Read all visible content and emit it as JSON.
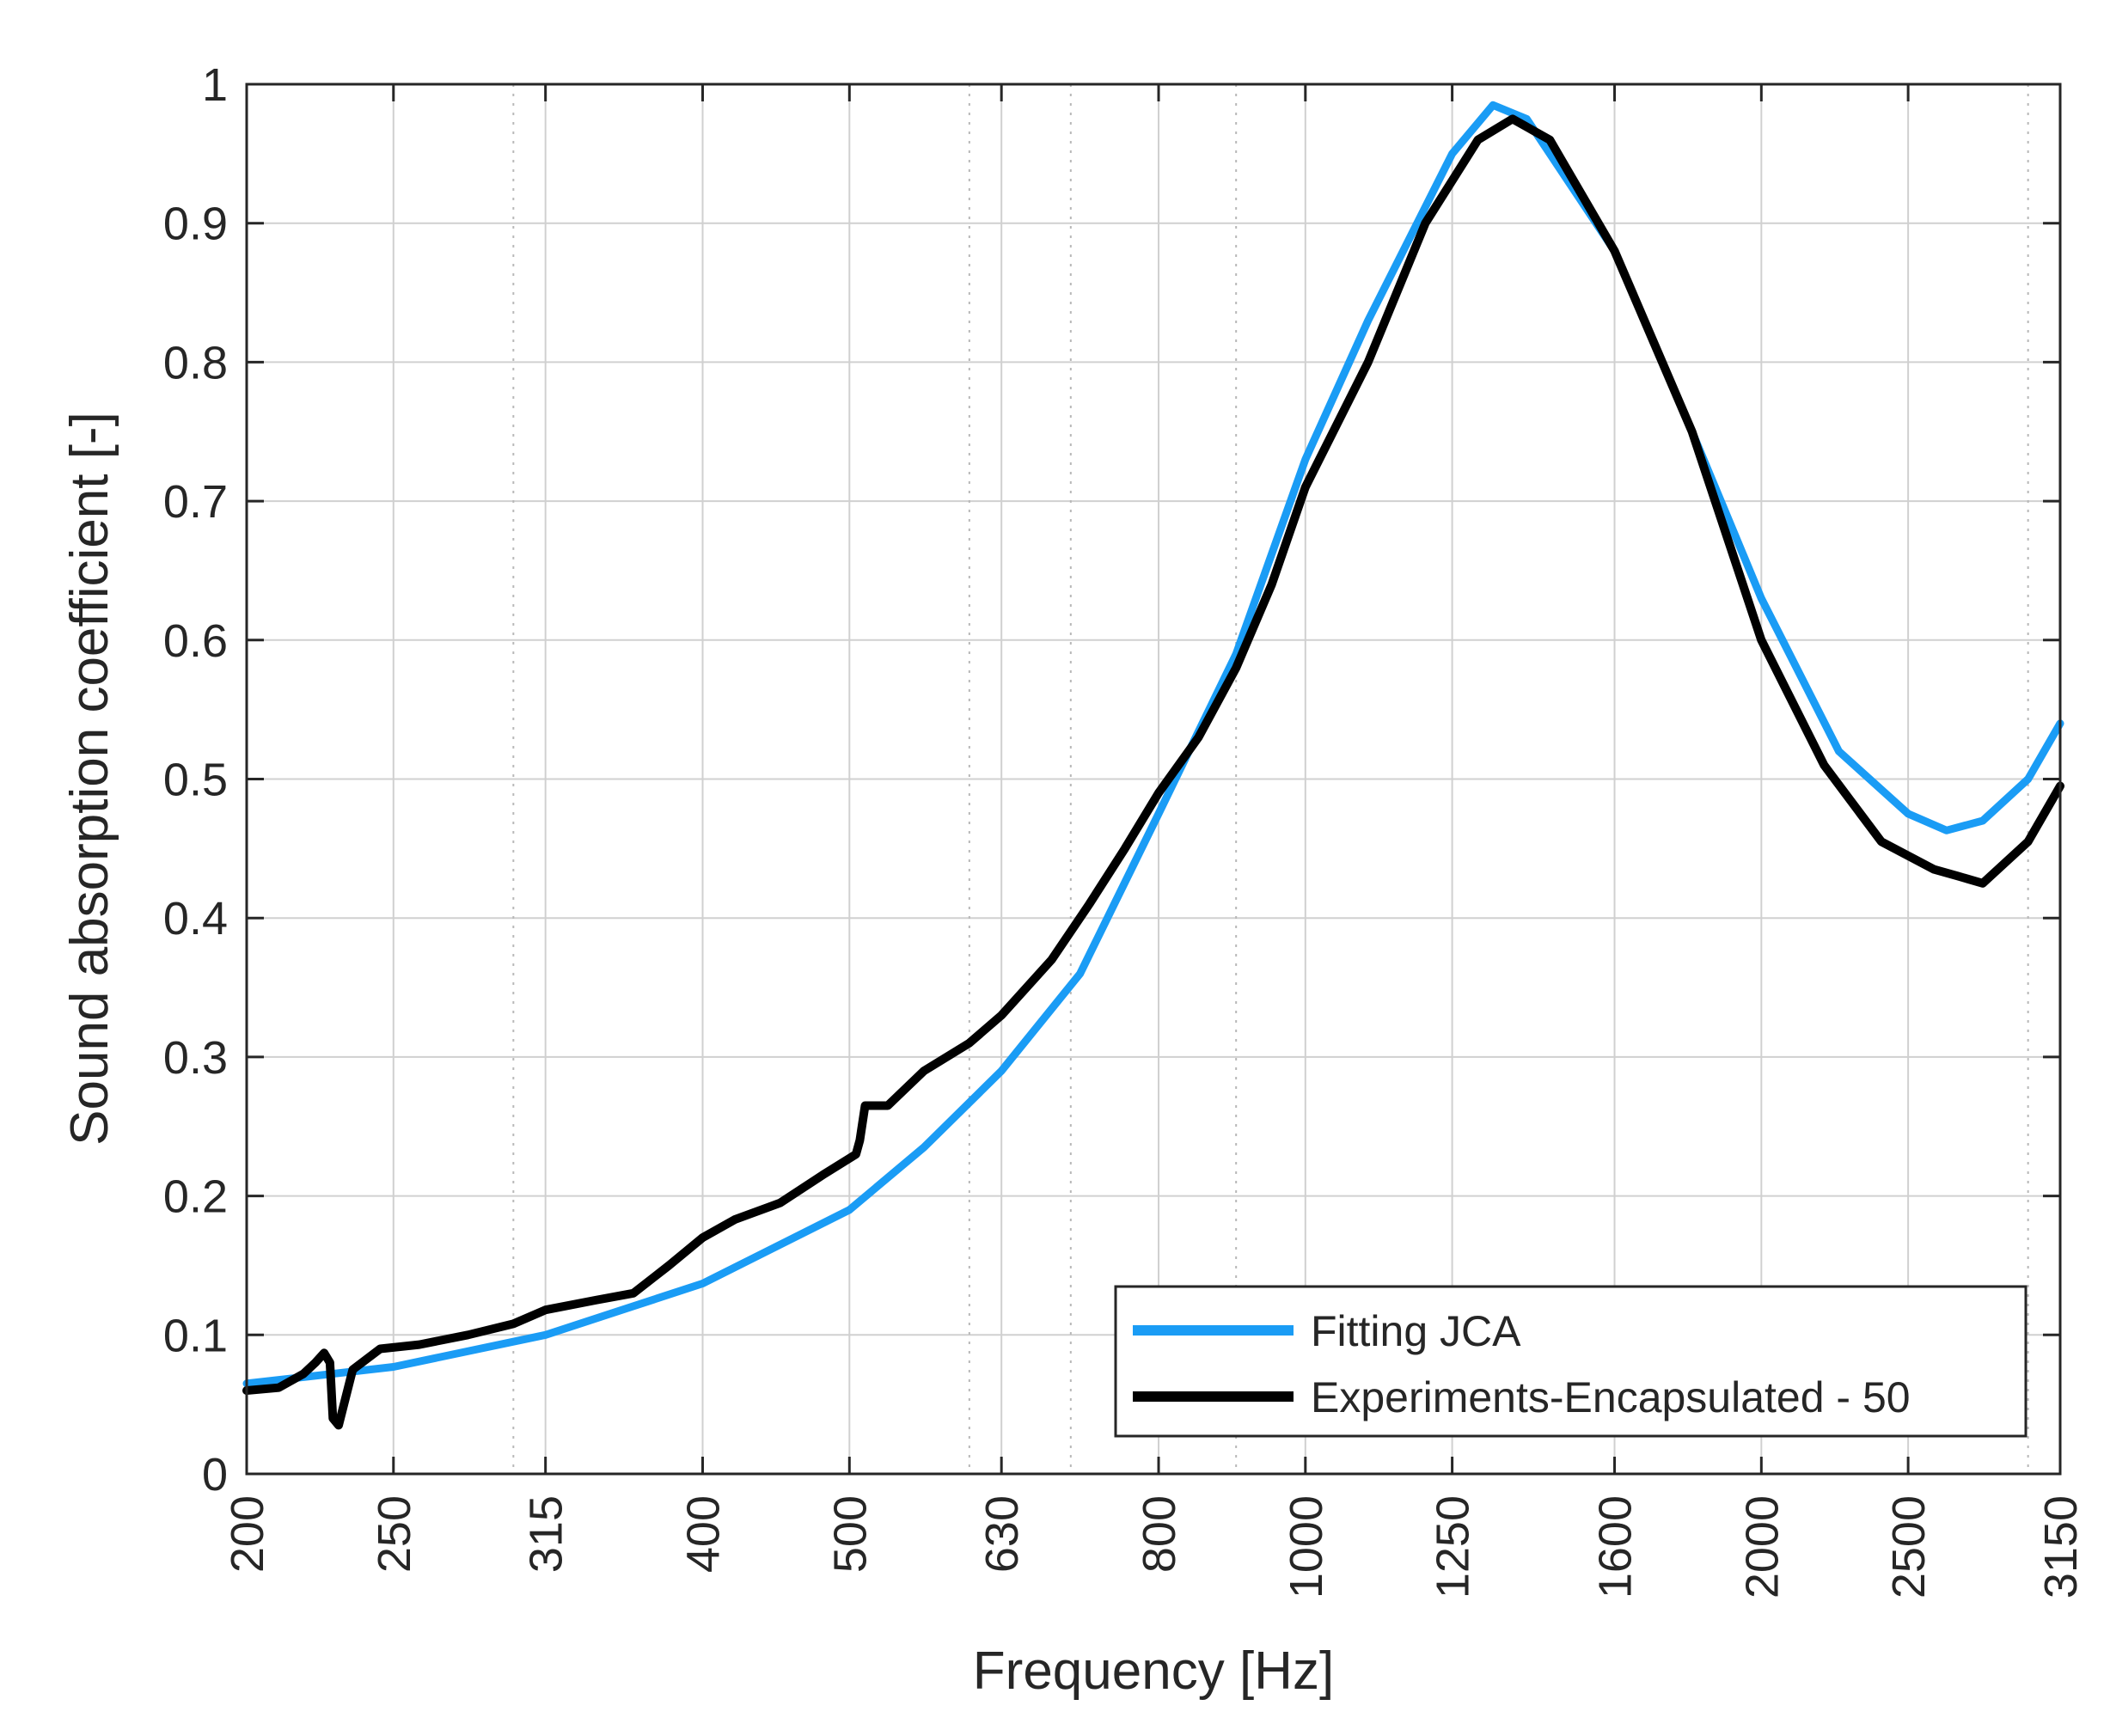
{
  "chart_data": {
    "type": "line",
    "title": "",
    "xlabel": "Frequency [Hz]",
    "ylabel": "Sound absorption coefficient [-]",
    "xscale": "log",
    "xlim": [
      200,
      3150
    ],
    "ylim": [
      0,
      1
    ],
    "grid": true,
    "x_ticks": [
      200,
      250,
      315,
      400,
      500,
      630,
      800,
      1000,
      1250,
      1600,
      2000,
      2500,
      3150
    ],
    "x_tick_labels": [
      "200",
      "250",
      "315",
      "400",
      "500",
      "630",
      "800",
      "1000",
      "1250",
      "1600",
      "2000",
      "2500",
      "3150"
    ],
    "x_minor_grid": [
      300,
      600,
      700,
      900,
      3000
    ],
    "y_ticks": [
      0,
      0.1,
      0.2,
      0.3,
      0.4,
      0.5,
      0.6,
      0.7,
      0.8,
      0.9,
      1
    ],
    "y_tick_labels": [
      "0",
      "0.1",
      "0.2",
      "0.3",
      "0.4",
      "0.5",
      "0.6",
      "0.7",
      "0.8",
      "0.9",
      "1"
    ],
    "legend_position": "bottom-right",
    "series": [
      {
        "name": "Fitting JCA",
        "color": "#1a9cf5",
        "x": [
          200,
          250,
          315,
          400,
          500,
          560,
          630,
          710,
          800,
          900,
          1000,
          1100,
          1250,
          1330,
          1400,
          1600,
          1800,
          2000,
          2250,
          2500,
          2650,
          2800,
          3000,
          3150
        ],
        "y": [
          0.065,
          0.077,
          0.1,
          0.137,
          0.19,
          0.235,
          0.29,
          0.36,
          0.475,
          0.59,
          0.73,
          0.83,
          0.95,
          0.985,
          0.975,
          0.88,
          0.75,
          0.63,
          0.52,
          0.475,
          0.463,
          0.47,
          0.5,
          0.54
        ]
      },
      {
        "name": "Experiments-Encapsulated - 50",
        "color": "#000000",
        "x": [
          200,
          210,
          218,
          222,
          225,
          227,
          228,
          230,
          235,
          245,
          260,
          280,
          300,
          315,
          340,
          360,
          380,
          400,
          420,
          450,
          480,
          505,
          508,
          512,
          530,
          560,
          600,
          630,
          680,
          720,
          760,
          800,
          850,
          900,
          950,
          1000,
          1100,
          1200,
          1300,
          1370,
          1450,
          1600,
          1800,
          2000,
          2200,
          2400,
          2600,
          2700,
          2800,
          3000,
          3150
        ],
        "y": [
          0.06,
          0.062,
          0.072,
          0.08,
          0.087,
          0.08,
          0.04,
          0.035,
          0.075,
          0.09,
          0.093,
          0.1,
          0.108,
          0.118,
          0.125,
          0.13,
          0.15,
          0.17,
          0.183,
          0.195,
          0.215,
          0.23,
          0.24,
          0.265,
          0.265,
          0.29,
          0.31,
          0.33,
          0.37,
          0.41,
          0.45,
          0.49,
          0.53,
          0.58,
          0.64,
          0.71,
          0.8,
          0.9,
          0.96,
          0.975,
          0.96,
          0.88,
          0.75,
          0.6,
          0.51,
          0.455,
          0.435,
          0.43,
          0.425,
          0.455,
          0.495
        ]
      }
    ]
  }
}
